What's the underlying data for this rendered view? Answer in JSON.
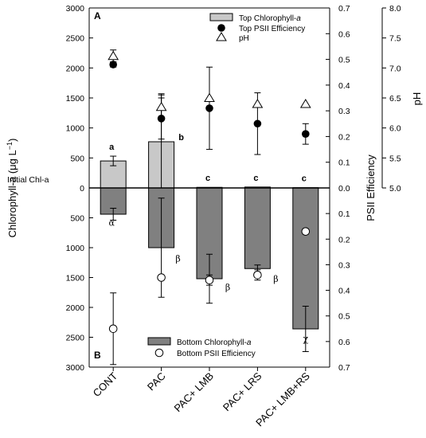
{
  "chart_data": {
    "type": "bar",
    "panel_labels": [
      "A",
      "B"
    ],
    "categories": [
      "CONT",
      "PAC",
      "PAC+ LMB",
      "PAC+ LRS",
      "PAC+ LMB+RS"
    ],
    "initial_label": "Initial Chl-a",
    "axes": {
      "left": {
        "label_pre": "Chlorophyll-",
        "label_italic": "a",
        "label_post": " (μg L",
        "label_sup": "−1",
        "label_end": ")",
        "top_range": [
          0,
          3000
        ],
        "bottom_range": [
          0,
          3000
        ],
        "ticks": [
          0,
          500,
          1000,
          1500,
          2000,
          2500,
          3000
        ]
      },
      "psii": {
        "label": "PSII Efficiency",
        "top_range": [
          0,
          0.7
        ],
        "bottom_range": [
          0,
          0.7
        ],
        "ticks": [
          0.0,
          0.1,
          0.2,
          0.3,
          0.4,
          0.5,
          0.6,
          0.7
        ]
      },
      "ph": {
        "label": "pH",
        "range": [
          5.0,
          8.0
        ],
        "ticks": [
          5.0,
          5.5,
          6.0,
          6.5,
          7.0,
          7.5,
          8.0
        ]
      }
    },
    "legend_top": {
      "chl_pre": "Top Chlorophyll-",
      "chl_italic": "a",
      "psii": "Top PSII Efficiency",
      "ph": "pH"
    },
    "legend_bottom": {
      "chl_pre": "Bottom Chlorophyll-",
      "chl_italic": "a",
      "psii": "Bottom PSII Efficiency"
    },
    "colors": {
      "top_bar": "#c8c8c8",
      "bottom_bar": "#808080"
    },
    "series": [
      {
        "name": "Top Chlorophyll-a",
        "values": [
          450,
          770,
          10,
          15,
          5
        ],
        "errors": [
          80,
          800,
          null,
          null,
          null
        ]
      },
      {
        "name": "Top PSII Efficiency",
        "values": [
          0.48,
          0.27,
          0.31,
          0.25,
          0.21
        ],
        "errors": [
          0.01,
          0.08,
          0.16,
          0.12,
          0.04
        ]
      },
      {
        "name": "pH",
        "values": [
          7.2,
          6.35,
          6.5,
          6.4,
          6.4
        ],
        "errors": [
          0.1,
          0.2,
          null,
          null,
          null
        ]
      },
      {
        "name": "Bottom Chlorophyll-a",
        "values": [
          440,
          1000,
          1520,
          1350,
          2360
        ],
        "errors": [
          100,
          830,
          410,
          60,
          380
        ]
      },
      {
        "name": "Bottom PSII Efficiency",
        "values": [
          0.55,
          0.35,
          0.36,
          0.34,
          0.17
        ],
        "errors": [
          0.14,
          null,
          0.02,
          0.02,
          0.01
        ]
      }
    ],
    "top_letters": [
      "a",
      "b",
      "c",
      "c",
      "c"
    ],
    "bottom_letters": [
      "α",
      "β",
      "β",
      "β",
      "χ"
    ]
  }
}
